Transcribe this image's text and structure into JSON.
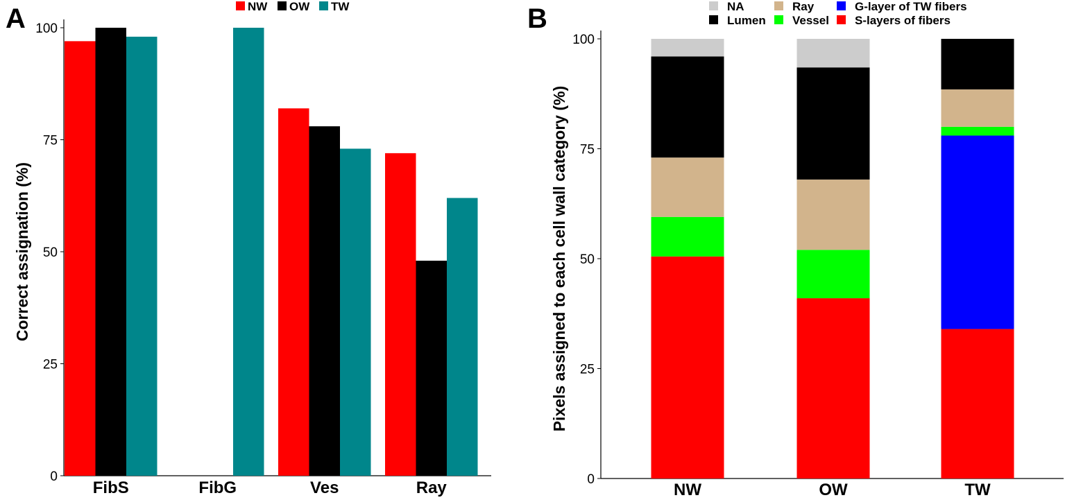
{
  "chart_data": [
    {
      "panel": "A",
      "type": "bar",
      "ylabel": "Correct assignation (%)",
      "xlabel": "",
      "ylim": [
        0,
        100
      ],
      "yticks": [
        0,
        25,
        50,
        75,
        100
      ],
      "categories": [
        "FibS",
        "FibG",
        "Ves",
        "Ray"
      ],
      "legend_position": "top",
      "series": [
        {
          "name": "NW",
          "color": "#ff0000",
          "values": [
            97,
            0,
            82,
            72
          ]
        },
        {
          "name": "OW",
          "color": "#000000",
          "values": [
            100,
            0,
            78,
            48
          ]
        },
        {
          "name": "TW",
          "color": "#00868b",
          "values": [
            98,
            100,
            73,
            62
          ]
        }
      ]
    },
    {
      "panel": "B",
      "type": "bar",
      "stacked": true,
      "ylabel": "Pixels assigned to each cell wall category (%)",
      "xlabel": "",
      "ylim": [
        0,
        100
      ],
      "yticks": [
        0,
        25,
        50,
        75,
        100
      ],
      "categories": [
        "NW",
        "OW",
        "TW"
      ],
      "legend_position": "top",
      "legend": [
        {
          "name": "NA",
          "color": "#cccccc"
        },
        {
          "name": "Ray",
          "color": "#d2b48c"
        },
        {
          "name": "G-layer of TW fibers",
          "color": "#0000ff"
        },
        {
          "name": "Lumen",
          "color": "#000000"
        },
        {
          "name": "Vessel",
          "color": "#00ff00"
        },
        {
          "name": "S-layers of fibers",
          "color": "#ff0000"
        }
      ],
      "stack_order": [
        "S-layers of fibers",
        "G-layer of TW fibers",
        "Vessel",
        "Ray",
        "Lumen",
        "NA"
      ],
      "series": [
        {
          "name": "S-layers of fibers",
          "color": "#ff0000",
          "values": [
            50.5,
            41,
            34
          ]
        },
        {
          "name": "G-layer of TW fibers",
          "color": "#0000ff",
          "values": [
            0,
            0,
            44
          ]
        },
        {
          "name": "Vessel",
          "color": "#00ff00",
          "values": [
            9,
            11,
            2
          ]
        },
        {
          "name": "Ray",
          "color": "#d2b48c",
          "values": [
            13.5,
            16,
            8.5
          ]
        },
        {
          "name": "Lumen",
          "color": "#000000",
          "values": [
            23,
            25.5,
            11.5
          ]
        },
        {
          "name": "NA",
          "color": "#cccccc",
          "values": [
            4,
            6.5,
            0
          ]
        }
      ]
    }
  ]
}
